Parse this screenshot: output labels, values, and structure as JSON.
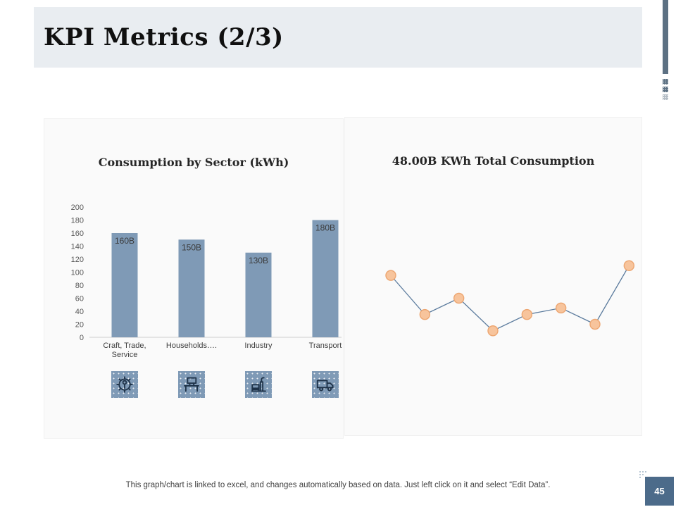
{
  "slide": {
    "title": "KPI Metrics (2/3)",
    "page_number": "45",
    "footer": "This graph/chart is linked to excel, and changes automatically based on data. Just left click on it and select “Edit Data”."
  },
  "colors": {
    "header_bg": "#e9edf1",
    "accent_bar": "#5d7183",
    "panel_bg": "#fafafa",
    "bar_fill": "#7f9ab6",
    "axis_line": "#d6d6d6",
    "tick_text": "#595959",
    "category_text": "#404040",
    "data_label_text": "#3b3b3b",
    "marker_fill": "#f7c49c",
    "marker_stroke": "#eda671",
    "line_stroke": "#5b7b9d",
    "icon_tile_bg": "#7f9ab6",
    "icon_stroke": "#1f3349",
    "page_box_bg": "#4c6b8a"
  },
  "chart_data": [
    {
      "type": "bar",
      "title": "Consumption by Sector (kWh)",
      "categories": [
        "Craft, Trade, Service",
        "Households….",
        "Industry",
        "Transport"
      ],
      "category_lines": [
        [
          "Craft, Trade,",
          "Service"
        ],
        [
          "Households…."
        ],
        [
          "Industry"
        ],
        [
          "Transport"
        ]
      ],
      "values": [
        160,
        150,
        130,
        180
      ],
      "data_labels": [
        "160B",
        "150B",
        "130B",
        "180B"
      ],
      "ylim": [
        0,
        200
      ],
      "yticks": [
        200,
        180,
        160,
        140,
        120,
        100,
        80,
        60,
        40,
        20,
        0
      ],
      "grid": false,
      "legend": "none",
      "icons": [
        "gear-wrench",
        "desk-computer",
        "factory",
        "truck"
      ]
    },
    {
      "type": "line",
      "title": "48.00B KWh Total Consumption",
      "x": [
        1,
        2,
        3,
        4,
        5,
        6,
        7,
        8
      ],
      "values": [
        95,
        35,
        60,
        10,
        35,
        45,
        20,
        110
      ],
      "ylim": [
        0,
        200
      ],
      "grid": false,
      "axes_visible": false,
      "marker": "circle"
    }
  ]
}
